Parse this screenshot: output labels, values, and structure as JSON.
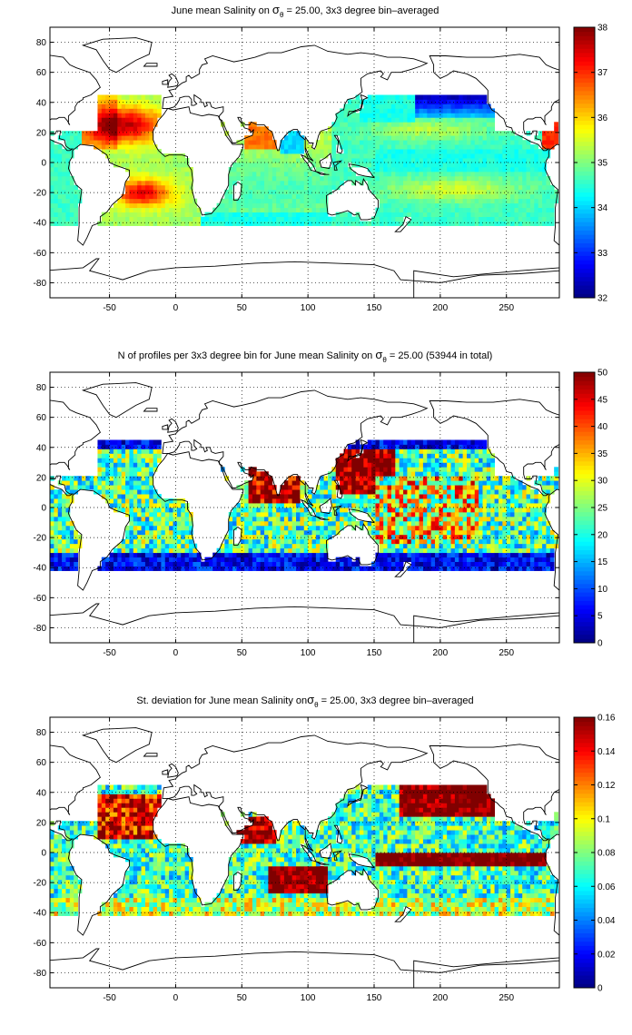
{
  "figure": {
    "colors": {
      "land_outline": "#000000",
      "grid": "#000000",
      "background": "#ffffff",
      "colormap": "jet"
    }
  },
  "chart_data": [
    {
      "type": "heatmap",
      "title_parts": [
        "June mean Salinity on ",
        "σ",
        "θ",
        " = 25.00, 3x3 degree bin–averaged"
      ],
      "xlabel": "",
      "ylabel": "",
      "xlim": [
        -95,
        290
      ],
      "ylim": [
        -90,
        90
      ],
      "xticks": [
        -50,
        0,
        50,
        100,
        150,
        200,
        250
      ],
      "xtick_labels": [
        "-50",
        "0",
        "50",
        "100",
        "150",
        "200",
        "250"
      ],
      "yticks": [
        -80,
        -60,
        -40,
        -20,
        0,
        20,
        40,
        60,
        80
      ],
      "ytick_labels": [
        "-80",
        "-60",
        "-40",
        "-20",
        "0",
        "20",
        "40",
        "60",
        "80"
      ],
      "grid": true,
      "colorbar": {
        "min": 32,
        "max": 38,
        "ticks": [
          32,
          33,
          34,
          35,
          36,
          37,
          38
        ],
        "tick_labels": [
          "32",
          "33",
          "34",
          "35",
          "36",
          "37",
          "38"
        ]
      },
      "field": "salinity"
    },
    {
      "type": "heatmap",
      "title_parts": [
        "N of profiles per 3x3 degree bin for June mean Salinity on ",
        "σ",
        "θ",
        " = 25.00 (53944 in total)"
      ],
      "xlabel": "",
      "ylabel": "",
      "xlim": [
        -95,
        290
      ],
      "ylim": [
        -90,
        90
      ],
      "xticks": [
        -50,
        0,
        50,
        100,
        150,
        200,
        250
      ],
      "xtick_labels": [
        "-50",
        "0",
        "50",
        "100",
        "150",
        "200",
        "250"
      ],
      "yticks": [
        -80,
        -60,
        -40,
        -20,
        0,
        20,
        40,
        60,
        80
      ],
      "ytick_labels": [
        "-80",
        "-60",
        "-40",
        "-20",
        "0",
        "20",
        "40",
        "60",
        "80"
      ],
      "grid": true,
      "colorbar": {
        "min": 0,
        "max": 50,
        "ticks": [
          0,
          5,
          10,
          15,
          20,
          25,
          30,
          35,
          40,
          45,
          50
        ],
        "tick_labels": [
          "0",
          "5",
          "10",
          "15",
          "20",
          "25",
          "30",
          "35",
          "40",
          "45",
          "50"
        ]
      },
      "field": "count"
    },
    {
      "type": "heatmap",
      "title_parts": [
        "St. deviation for June mean Salinity on",
        "σ",
        "θ",
        " = 25.00, 3x3 degree bin–averaged"
      ],
      "xlabel": "",
      "ylabel": "",
      "xlim": [
        -95,
        290
      ],
      "ylim": [
        -90,
        90
      ],
      "xticks": [
        -50,
        0,
        50,
        100,
        150,
        200,
        250
      ],
      "xtick_labels": [
        "-50",
        "0",
        "50",
        "100",
        "150",
        "200",
        "250"
      ],
      "yticks": [
        -80,
        -60,
        -40,
        -20,
        0,
        20,
        40,
        60,
        80
      ],
      "ytick_labels": [
        "-80",
        "-60",
        "-40",
        "-20",
        "0",
        "20",
        "40",
        "60",
        "80"
      ],
      "grid": true,
      "colorbar": {
        "min": 0,
        "max": 0.16,
        "ticks": [
          0,
          0.02,
          0.04,
          0.06,
          0.08,
          0.1,
          0.12,
          0.14,
          0.16
        ],
        "tick_labels": [
          "0",
          "0.02",
          "0.04",
          "0.06",
          "0.08",
          "0.1",
          "0.12",
          "0.14",
          "0.16"
        ]
      },
      "field": "stdev"
    }
  ]
}
